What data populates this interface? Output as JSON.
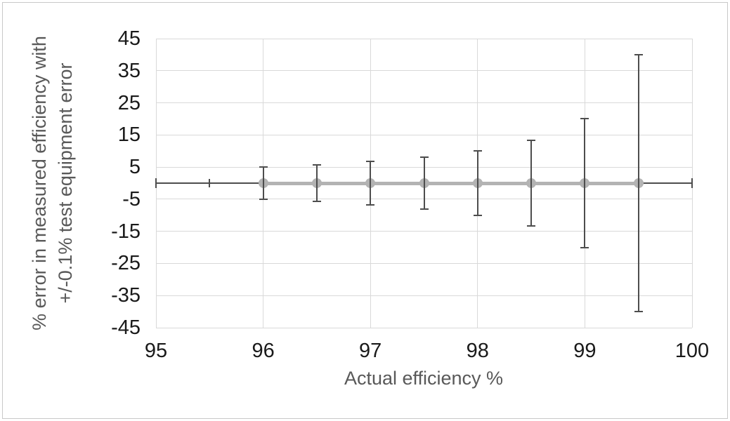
{
  "chart_data": {
    "type": "scatter",
    "xlabel": "Actual efficiency %",
    "ylabel_line1": "% error in measured efficiency with",
    "ylabel_line2": "+/-0.1% test equipment error",
    "xlim": [
      95,
      100
    ],
    "ylim": [
      -45,
      45
    ],
    "x_ticks": [
      95,
      96,
      97,
      98,
      99,
      100
    ],
    "y_ticks": [
      45,
      35,
      25,
      15,
      5,
      -5,
      -15,
      -25,
      -35,
      -45
    ],
    "grid": true,
    "legend": "none",
    "series": [
      {
        "x": [
          96,
          96.5,
          97,
          97.5,
          98,
          98.5,
          99,
          99.5
        ],
        "y": [
          0,
          0,
          0,
          0,
          0,
          0,
          0,
          0
        ],
        "y_error": [
          5,
          5.71,
          6.67,
          8,
          10,
          13.33,
          20,
          40
        ]
      }
    ],
    "baseline_segments": [
      {
        "from": 95,
        "to": 96,
        "style": "error-bar"
      },
      {
        "from": 96,
        "to": 99.5,
        "style": "series-line"
      },
      {
        "from": 99.5,
        "to": 100,
        "style": "error-bar"
      }
    ],
    "x_error_caps": [
      {
        "x": 95,
        "size": 14
      },
      {
        "x": 95.5,
        "size": 12
      },
      {
        "x": 100,
        "size": 14
      }
    ],
    "colors": {
      "series": "#b3b3b3",
      "error_bar": "#4d4d4d",
      "gridline": "#d9d9d9",
      "tick_label": "#1a1a1a",
      "axis_title": "#595959",
      "border": "#c9c9c9",
      "background": "#ffffff"
    }
  }
}
